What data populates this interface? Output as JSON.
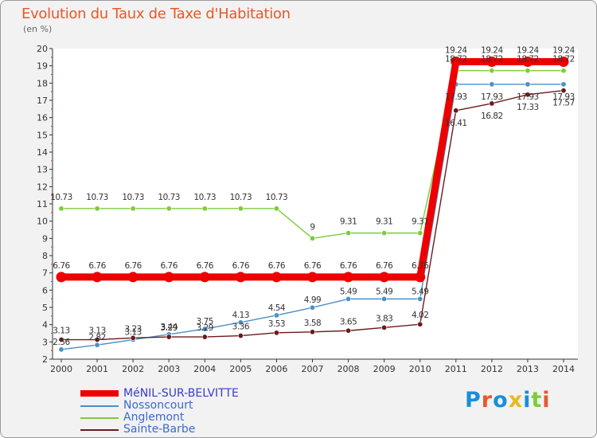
{
  "chart_data": {
    "type": "line",
    "title": "Evolution du Taux de Taxe d'Habitation",
    "subtitle": "(en %)",
    "x": [
      "2000",
      "2001",
      "2002",
      "2003",
      "2004",
      "2005",
      "2006",
      "2007",
      "2008",
      "2009",
      "2010",
      "2011",
      "2012",
      "2013",
      "2014"
    ],
    "ylim": [
      2,
      20
    ],
    "yticks": [
      2,
      3,
      4,
      5,
      6,
      7,
      8,
      9,
      10,
      11,
      12,
      13,
      14,
      15,
      16,
      17,
      18,
      19,
      20
    ],
    "grid": false,
    "legend_position": "bottom-left",
    "series": [
      {
        "name": "MéNIL-SUR-BELVITTE",
        "color": "#ee0000",
        "values": [
          6.76,
          6.76,
          6.76,
          6.76,
          6.76,
          6.76,
          6.76,
          6.76,
          6.76,
          6.76,
          6.76,
          19.24,
          19.24,
          19.24,
          19.24
        ],
        "labels": [
          "6.76",
          "6.76",
          "6.76",
          "6.76",
          "6.76",
          "6.76",
          "6.76",
          "6.76",
          "6.76",
          "6.76",
          "6.76",
          "19.24",
          "19.24",
          "19.24",
          "19.24"
        ]
      },
      {
        "name": "Nossoncourt",
        "color": "#4a90c8",
        "values": [
          2.56,
          2.82,
          3.13,
          3.44,
          3.75,
          4.13,
          4.54,
          4.99,
          5.49,
          5.49,
          5.49,
          17.93,
          17.93,
          17.93,
          17.93
        ],
        "labels": [
          "2.56",
          "2.82",
          "3.13",
          "3.44",
          "3.75",
          "4.13",
          "4.54",
          "4.99",
          "5.49",
          "5.49",
          "5.49",
          "17.93",
          "17.93",
          "17.93",
          "17.93"
        ]
      },
      {
        "name": "Anglemont",
        "color": "#7ccc3a",
        "values": [
          10.73,
          10.73,
          10.73,
          10.73,
          10.73,
          10.73,
          10.73,
          9,
          9.31,
          9.31,
          9.31,
          18.72,
          18.72,
          18.72,
          18.72
        ],
        "labels": [
          "10.73",
          "10.73",
          "10.73",
          "10.73",
          "10.73",
          "10.73",
          "10.73",
          "9",
          "9.31",
          "9.31",
          "9.31",
          "18.72",
          "18.72",
          "18.72",
          "18.72"
        ]
      },
      {
        "name": "Sainte-Barbe",
        "color": "#6a1b1b",
        "values": [
          3.13,
          3.13,
          3.23,
          3.29,
          3.29,
          3.36,
          3.53,
          3.58,
          3.65,
          3.83,
          4.02,
          16.41,
          16.82,
          17.33,
          17.57
        ],
        "labels": [
          "3.13",
          "3.13",
          "3.23",
          "3.29",
          "3.29",
          "3.36",
          "3.53",
          "3.58",
          "3.65",
          "3.83",
          "4.02",
          "16.41",
          "16.82",
          "17.33",
          "17.57"
        ]
      }
    ]
  },
  "logo": {
    "text": "Proxiti"
  }
}
